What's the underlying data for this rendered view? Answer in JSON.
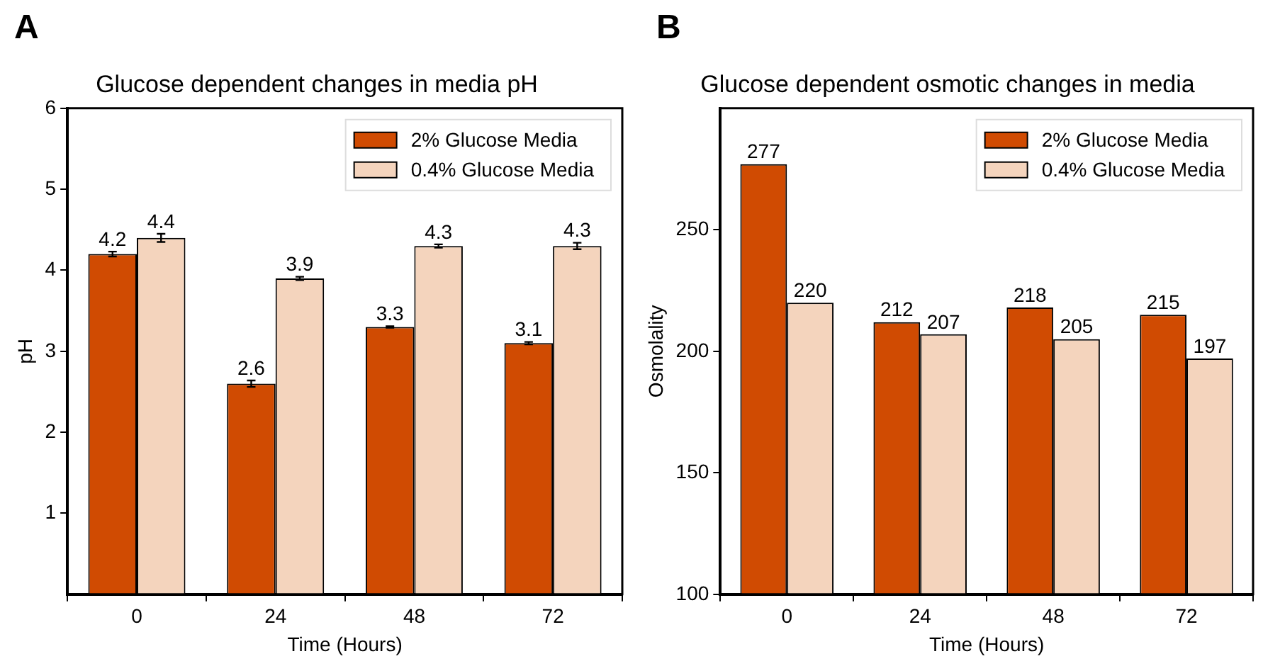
{
  "chart_data": [
    {
      "type": "bar",
      "title": "Glucose dependent changes in media pH",
      "xlabel": "Time (Hours)",
      "ylabel": "pH",
      "annotations": [
        "A"
      ],
      "categories": [
        "0",
        "24",
        "48",
        "72"
      ],
      "series": [
        {
          "name": "2% Glucose Media",
          "color": "#d04b02",
          "values": [
            4.2,
            2.6,
            3.3,
            3.1
          ],
          "errors": [
            0.03,
            0.04,
            0.01,
            0.015
          ]
        },
        {
          "name": "0.4% Glucose Media",
          "color": "#f4d4bd",
          "values": [
            4.4,
            3.9,
            4.3,
            4.3
          ],
          "errors": [
            0.05,
            0.02,
            0.02,
            0.04
          ]
        }
      ],
      "ylim": [
        0,
        6
      ],
      "yticks": [
        1,
        2,
        3,
        4,
        5,
        6
      ],
      "grid": false,
      "legend": "top right",
      "data_labels": true
    },
    {
      "type": "bar",
      "title": "Glucose dependent osmotic changes in media",
      "xlabel": "Time (Hours)",
      "ylabel": "Osmolality",
      "annotations": [
        "B"
      ],
      "categories": [
        "0",
        "24",
        "48",
        "72"
      ],
      "series": [
        {
          "name": "2% Glucose Media",
          "color": "#d04b02",
          "values": [
            277,
            212,
            218,
            215
          ]
        },
        {
          "name": "0.4% Glucose Media",
          "color": "#f4d4bd",
          "values": [
            220,
            207,
            205,
            197
          ]
        }
      ],
      "ylim": [
        100,
        300
      ],
      "yticks": [
        100,
        150,
        200,
        250
      ],
      "grid": false,
      "legend": "top right",
      "data_labels": true
    }
  ]
}
